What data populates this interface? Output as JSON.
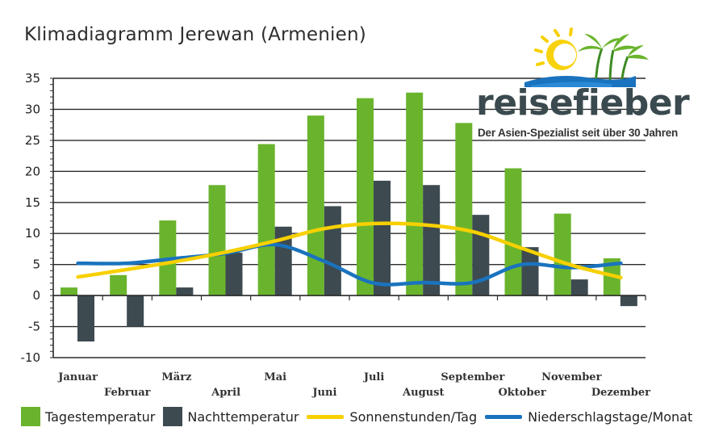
{
  "chart_data": {
    "type": "bar",
    "title": "Klimadiagramm Jerewan (Armenien)",
    "categories": [
      "Januar",
      "Februar",
      "März",
      "April",
      "Mai",
      "Juni",
      "Juli",
      "August",
      "September",
      "Oktober",
      "November",
      "Dezember"
    ],
    "ylim": [
      -10,
      35
    ],
    "yticks": [
      35,
      30,
      25,
      20,
      15,
      10,
      5,
      0,
      -5,
      -10
    ],
    "grid": true,
    "legend_position": "bottom",
    "series": [
      {
        "name": "Tagestemperatur",
        "kind": "bar",
        "color": "#6ab42d",
        "values": [
          1.3,
          3.3,
          12.1,
          17.8,
          24.4,
          29.0,
          31.8,
          32.7,
          27.8,
          20.5,
          13.2,
          6.0
        ]
      },
      {
        "name": "Nachttemperatur",
        "kind": "bar",
        "color": "#3d4a50",
        "values": [
          -7.4,
          -5.0,
          1.3,
          6.9,
          11.1,
          14.4,
          18.5,
          17.8,
          13.0,
          7.8,
          2.6,
          -1.7
        ]
      },
      {
        "name": "Sonnenstunden/Tag",
        "kind": "line",
        "color": "#f7d000",
        "values": [
          3.0,
          4.2,
          5.5,
          7.0,
          8.8,
          10.8,
          11.6,
          11.4,
          10.3,
          7.6,
          4.9,
          2.9
        ]
      },
      {
        "name": "Niederschlagstage/Monat",
        "kind": "line",
        "color": "#1a73be",
        "values": [
          5.2,
          5.2,
          6.0,
          6.8,
          8.2,
          5.5,
          2.0,
          2.1,
          2.1,
          5.0,
          4.5,
          5.2
        ]
      }
    ]
  },
  "logo": {
    "brand": "reisefieber",
    "tagline": "Der Asien-Spezialist seit über 30 Jahren",
    "icon": "sun-palm-logo",
    "colors": {
      "sun": "#f7d000",
      "palm": "#6ab42d",
      "water": "#1a73be",
      "text": "#3a4a4f"
    }
  }
}
